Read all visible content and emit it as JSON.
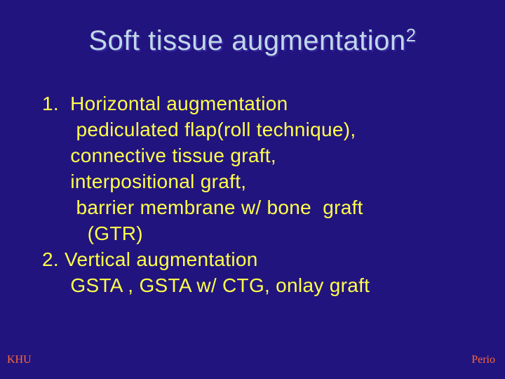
{
  "colors": {
    "background": "#22147e",
    "title": "#c0d8e8",
    "title_shadow": "#3a2aa4",
    "body_text": "#ffff4a",
    "footer": "#ff6a36"
  },
  "title": {
    "base": "Soft tissue augmentation",
    "superscript": "2",
    "fontsize": 40,
    "align": "center"
  },
  "body": {
    "fontsize": 28,
    "lines": [
      "1.  Horizontal augmentation",
      "      pediculated flap(roll technique),",
      "     connective tissue graft,",
      "     interpositional graft,",
      "      barrier membrane w/ bone  graft",
      "        (GTR)",
      "2. Vertical augmentation",
      "     GSTA , GSTA w/ CTG, onlay graft"
    ]
  },
  "footer": {
    "left": "KHU",
    "right": "Perio",
    "fontsize": 16
  }
}
